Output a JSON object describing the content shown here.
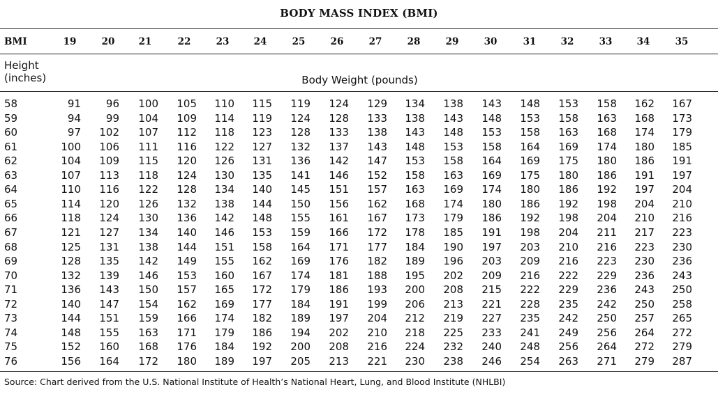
{
  "title": "BODY MASS INDEX (BMI)",
  "bmi_label": "BMI",
  "bmi_values": [
    "19",
    "20",
    "21",
    "22",
    "23",
    "24",
    "25",
    "26",
    "27",
    "28",
    "29",
    "30",
    "31",
    "32",
    "33",
    "34",
    "35"
  ],
  "height_label_1": "Height",
  "height_label_2": "(inches)",
  "weight_label": "Body Weight (pounds)",
  "rows": [
    {
      "height": "58",
      "weights": [
        "91",
        "96",
        "100",
        "105",
        "110",
        "115",
        "119",
        "124",
        "129",
        "134",
        "138",
        "143",
        "148",
        "153",
        "158",
        "162",
        "167"
      ]
    },
    {
      "height": "59",
      "weights": [
        "94",
        "99",
        "104",
        "109",
        "114",
        "119",
        "124",
        "128",
        "133",
        "138",
        "143",
        "148",
        "153",
        "158",
        "163",
        "168",
        "173"
      ]
    },
    {
      "height": "60",
      "weights": [
        "97",
        "102",
        "107",
        "112",
        "118",
        "123",
        "128",
        "133",
        "138",
        "143",
        "148",
        "153",
        "158",
        "163",
        "168",
        "174",
        "179"
      ]
    },
    {
      "height": "61",
      "weights": [
        "100",
        "106",
        "111",
        "116",
        "122",
        "127",
        "132",
        "137",
        "143",
        "148",
        "153",
        "158",
        "164",
        "169",
        "174",
        "180",
        "185"
      ]
    },
    {
      "height": "62",
      "weights": [
        "104",
        "109",
        "115",
        "120",
        "126",
        "131",
        "136",
        "142",
        "147",
        "153",
        "158",
        "164",
        "169",
        "175",
        "180",
        "186",
        "191"
      ]
    },
    {
      "height": "63",
      "weights": [
        "107",
        "113",
        "118",
        "124",
        "130",
        "135",
        "141",
        "146",
        "152",
        "158",
        "163",
        "169",
        "175",
        "180",
        "186",
        "191",
        "197"
      ]
    },
    {
      "height": "64",
      "weights": [
        "110",
        "116",
        "122",
        "128",
        "134",
        "140",
        "145",
        "151",
        "157",
        "163",
        "169",
        "174",
        "180",
        "186",
        "192",
        "197",
        "204"
      ]
    },
    {
      "height": "65",
      "weights": [
        "114",
        "120",
        "126",
        "132",
        "138",
        "144",
        "150",
        "156",
        "162",
        "168",
        "174",
        "180",
        "186",
        "192",
        "198",
        "204",
        "210"
      ]
    },
    {
      "height": "66",
      "weights": [
        "118",
        "124",
        "130",
        "136",
        "142",
        "148",
        "155",
        "161",
        "167",
        "173",
        "179",
        "186",
        "192",
        "198",
        "204",
        "210",
        "216"
      ]
    },
    {
      "height": "67",
      "weights": [
        "121",
        "127",
        "134",
        "140",
        "146",
        "153",
        "159",
        "166",
        "172",
        "178",
        "185",
        "191",
        "198",
        "204",
        "211",
        "217",
        "223"
      ]
    },
    {
      "height": "68",
      "weights": [
        "125",
        "131",
        "138",
        "144",
        "151",
        "158",
        "164",
        "171",
        "177",
        "184",
        "190",
        "197",
        "203",
        "210",
        "216",
        "223",
        "230"
      ]
    },
    {
      "height": "69",
      "weights": [
        "128",
        "135",
        "142",
        "149",
        "155",
        "162",
        "169",
        "176",
        "182",
        "189",
        "196",
        "203",
        "209",
        "216",
        "223",
        "230",
        "236"
      ]
    },
    {
      "height": "70",
      "weights": [
        "132",
        "139",
        "146",
        "153",
        "160",
        "167",
        "174",
        "181",
        "188",
        "195",
        "202",
        "209",
        "216",
        "222",
        "229",
        "236",
        "243"
      ]
    },
    {
      "height": "71",
      "weights": [
        "136",
        "143",
        "150",
        "157",
        "165",
        "172",
        "179",
        "186",
        "193",
        "200",
        "208",
        "215",
        "222",
        "229",
        "236",
        "243",
        "250"
      ]
    },
    {
      "height": "72",
      "weights": [
        "140",
        "147",
        "154",
        "162",
        "169",
        "177",
        "184",
        "191",
        "199",
        "206",
        "213",
        "221",
        "228",
        "235",
        "242",
        "250",
        "258"
      ]
    },
    {
      "height": "73",
      "weights": [
        "144",
        "151",
        "159",
        "166",
        "174",
        "182",
        "189",
        "197",
        "204",
        "212",
        "219",
        "227",
        "235",
        "242",
        "250",
        "257",
        "265"
      ]
    },
    {
      "height": "74",
      "weights": [
        "148",
        "155",
        "163",
        "171",
        "179",
        "186",
        "194",
        "202",
        "210",
        "218",
        "225",
        "233",
        "241",
        "249",
        "256",
        "264",
        "272"
      ]
    },
    {
      "height": "75",
      "weights": [
        "152",
        "160",
        "168",
        "176",
        "184",
        "192",
        "200",
        "208",
        "216",
        "224",
        "232",
        "240",
        "248",
        "256",
        "264",
        "272",
        "279"
      ]
    },
    {
      "height": "76",
      "weights": [
        "156",
        "164",
        "172",
        "180",
        "189",
        "197",
        "205",
        "213",
        "221",
        "230",
        "238",
        "246",
        "254",
        "263",
        "271",
        "279",
        "287"
      ]
    }
  ],
  "source": "Source: Chart derived from the U.S. National Institute of Health’s National Heart, Lung, and Blood Institute (NHLBI)"
}
